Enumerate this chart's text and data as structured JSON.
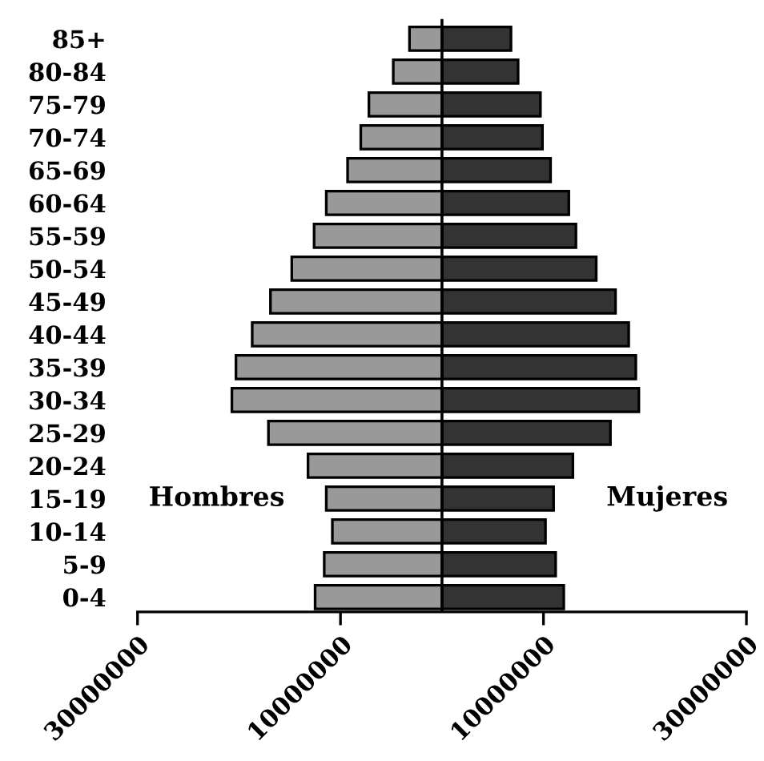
{
  "chart_data": {
    "type": "bar",
    "orientation": "horizontal",
    "stacked": true,
    "categories": [
      "85+",
      "80-84",
      "75-79",
      "70-74",
      "65-69",
      "60-64",
      "55-59",
      "50-54",
      "45-49",
      "40-44",
      "35-39",
      "30-34",
      "25-29",
      "20-24",
      "15-19",
      "10-14",
      "5-9",
      "0-4"
    ],
    "series": [
      {
        "name": "Hombres",
        "color": "#999999",
        "values": [
          -3200000,
          -4800000,
          -7200000,
          -8000000,
          -9300000,
          -11400000,
          -12600000,
          -14800000,
          -16900000,
          -18700000,
          -20300000,
          -20700000,
          -17100000,
          -13200000,
          -11400000,
          -10800000,
          -11600000,
          -12500000
        ]
      },
      {
        "name": "Mujeres",
        "color": "#333333",
        "values": [
          6800000,
          7500000,
          9700000,
          9900000,
          10700000,
          12500000,
          13200000,
          15200000,
          17100000,
          18400000,
          19100000,
          19400000,
          16600000,
          12900000,
          11000000,
          10200000,
          11200000,
          12000000
        ]
      }
    ],
    "xlim": [
      -30000000,
      30000000
    ],
    "xticks": [
      {
        "value": -30000000,
        "label": "30000000"
      },
      {
        "value": -10000000,
        "label": "10000000"
      },
      10000000,
      30000000
    ],
    "ref_lines": [
      {
        "axis": "x",
        "value": 0,
        "color": "#000000"
      }
    ],
    "grid": false,
    "legend": false
  }
}
